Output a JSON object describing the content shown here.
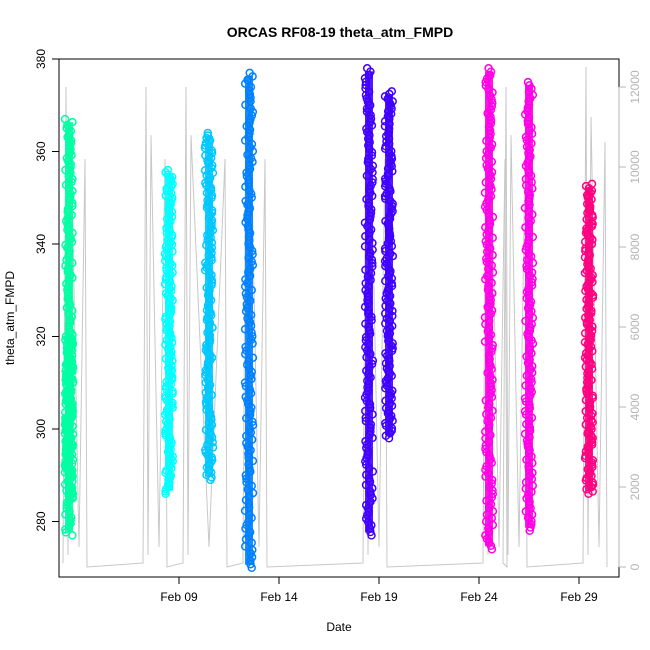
{
  "chart_data": {
    "type": "scatter",
    "title": "ORCAS RF08-19 theta_atm_FMPD",
    "xlabel": "Date",
    "ylabel": "theta_atm_FMPD",
    "xaxis": {
      "range": [
        "2016-02-03",
        "2016-03-02"
      ],
      "tick_dates": [
        "2016-02-09",
        "2016-02-14",
        "2016-02-19",
        "2016-02-24",
        "2016-02-29"
      ],
      "tick_labels": [
        "Feb 09",
        "Feb 14",
        "Feb 19",
        "Feb 24",
        "Feb 29"
      ]
    },
    "yaxis_left": {
      "range": [
        268,
        380
      ],
      "ticks": [
        280,
        300,
        320,
        340,
        360,
        380
      ],
      "tick_labels": [
        "280",
        "300",
        "320",
        "340",
        "360",
        "380"
      ]
    },
    "yaxis_right": {
      "range": [
        -250,
        12700
      ],
      "ticks": [
        0,
        2000,
        4000,
        6000,
        8000,
        10000,
        12000
      ],
      "tick_labels": [
        "0",
        "2000",
        "4000",
        "6000",
        "8000",
        "10000",
        "12000"
      ],
      "color": "#b4b4b4"
    },
    "grid": false,
    "legend": "none",
    "series": [
      {
        "date": "2016-02-03",
        "ymin": 277.0,
        "ymax": 367.0,
        "color": "#00FFA3"
      },
      {
        "date": "2016-02-03",
        "ymin": 285.0,
        "ymax": 320.0,
        "color": "#00FFA3"
      },
      {
        "date": "2016-02-08",
        "ymin": 286.0,
        "ymax": 356.0,
        "color": "#00FFFF"
      },
      {
        "date": "2016-02-10",
        "ymin": 289.0,
        "ymax": 364.0,
        "color": "#00C8FF"
      },
      {
        "date": "2016-02-12",
        "ymin": 270.0,
        "ymax": 377.0,
        "color": "#0080FF"
      },
      {
        "date": "2016-02-18",
        "ymin": 277.0,
        "ymax": 378.0,
        "color": "#4000FF"
      },
      {
        "date": "2016-02-19",
        "ymin": 298.0,
        "ymax": 373.0,
        "color": "#4000FF"
      },
      {
        "date": "2016-02-24",
        "ymin": 274.0,
        "ymax": 378.0,
        "color": "#FF00E6"
      },
      {
        "date": "2016-02-26",
        "ymin": 278.0,
        "ymax": 375.0,
        "color": "#FF00E6"
      },
      {
        "date": "2016-02-29",
        "ymin": 286.0,
        "ymax": 353.0,
        "color": "#FF0080"
      }
    ],
    "altitude_trace": {
      "color": "#c8c8c8",
      "segments": [
        {
          "start": "2016-02-03",
          "end": "2016-02-04",
          "min": 0,
          "max": 12000
        },
        {
          "start": "2016-02-07",
          "end": "2016-02-08",
          "min": 0,
          "max": 12000
        },
        {
          "start": "2016-02-09",
          "end": "2016-02-11",
          "min": 0,
          "max": 12000
        },
        {
          "start": "2016-02-12",
          "end": "2016-02-13",
          "min": 0,
          "max": 12000
        },
        {
          "start": "2016-02-18",
          "end": "2016-02-19",
          "min": 0,
          "max": 12000
        },
        {
          "start": "2016-02-24",
          "end": "2016-02-25",
          "min": 0,
          "max": 12000
        },
        {
          "start": "2016-02-25",
          "end": "2016-02-26",
          "min": 0,
          "max": 12000
        },
        {
          "start": "2016-02-29",
          "end": "2016-03-01",
          "min": 0,
          "max": 12500
        }
      ]
    }
  }
}
